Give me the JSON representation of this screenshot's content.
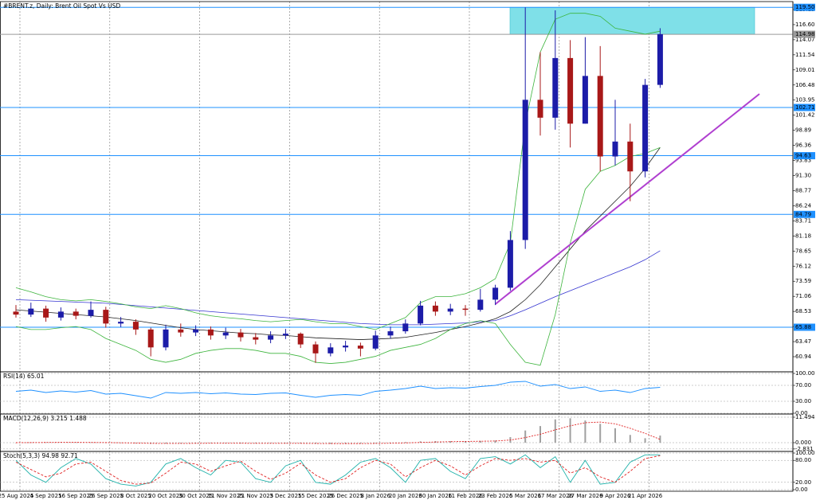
{
  "chart_data": [
    {
      "type": "candlestick",
      "title": "#BRENT.z, Daily:  Brent Oil Spot Vs USD",
      "categories": [
        "25 Aug 2025",
        null,
        "4 Sep 2025",
        null,
        "16 Sep 2025",
        null,
        "26 Sep 2025",
        null,
        "8 Oct 2025",
        null,
        "20 Oct 2025",
        null,
        "30 Oct 2025",
        null,
        "11 Nov 2025",
        null,
        "21 Nov 2025",
        null,
        "3 Dec 2025",
        null,
        "15 Dec 2025",
        null,
        "26 Dec 2025",
        null,
        "8 Jan 2026",
        null,
        "20 Jan 2026",
        null,
        "30 Jan 2026",
        null,
        "11 Feb 2026",
        null,
        "23 Feb 2026",
        null,
        "5 Mar 2026",
        null,
        "17 Mar 2026",
        null,
        "27 Mar 2026",
        null,
        "9 Apr 2026",
        null,
        "21 Apr 2026",
        null
      ],
      "open": [
        68.5,
        68.0,
        69.0,
        67.5,
        68.5,
        67.8,
        68.8,
        66.5,
        66.8,
        65.5,
        62.5,
        65.5,
        65.0,
        65.5,
        64.5,
        65.0,
        64.2,
        63.8,
        64.5,
        64.8,
        63.0,
        61.5,
        62.5,
        62.8,
        62.3,
        64.5,
        65.2,
        66.5,
        69.5,
        68.5,
        69.0,
        68.8,
        70.5,
        72.5,
        80.5,
        104.0,
        101.0,
        111.0,
        100.0,
        108.0,
        94.5,
        97.0,
        92.0,
        106.5
      ],
      "high": [
        69.6,
        70.0,
        69.5,
        69.2,
        69.0,
        70.2,
        69.3,
        67.6,
        67.2,
        65.8,
        66.3,
        66.5,
        66.2,
        66.0,
        65.8,
        65.6,
        64.9,
        65.2,
        65.6,
        65.0,
        63.5,
        63.2,
        63.6,
        63.3,
        65.3,
        66.0,
        67.2,
        70.3,
        70.2,
        69.8,
        69.6,
        72.3,
        73.0,
        82.0,
        119.5,
        112.0,
        119.0,
        114.0,
        114.5,
        113.0,
        104.0,
        100.0,
        107.5,
        116.0
      ],
      "low": [
        67.5,
        67.6,
        66.8,
        67.0,
        67.2,
        67.5,
        65.8,
        65.9,
        64.6,
        61.0,
        62.0,
        64.3,
        64.4,
        63.8,
        63.9,
        63.5,
        63.0,
        63.2,
        63.9,
        62.4,
        59.9,
        61.0,
        61.8,
        61.0,
        62.0,
        64.0,
        64.8,
        66.2,
        67.8,
        67.9,
        67.8,
        68.5,
        69.6,
        72.0,
        79.0,
        98.0,
        99.0,
        96.0,
        100.0,
        92.0,
        93.0,
        87.0,
        91.0,
        106.0
      ],
      "close": [
        68.0,
        69.0,
        67.5,
        68.5,
        67.8,
        68.8,
        66.5,
        66.8,
        65.5,
        62.5,
        65.5,
        65.0,
        65.5,
        64.5,
        65.0,
        64.2,
        63.8,
        64.5,
        64.8,
        63.0,
        61.5,
        62.5,
        62.8,
        62.3,
        64.5,
        65.2,
        66.5,
        69.5,
        68.5,
        69.0,
        68.8,
        70.5,
        72.5,
        80.5,
        104.0,
        101.0,
        111.0,
        100.0,
        108.0,
        94.5,
        97.0,
        92.0,
        106.5,
        115.0
      ],
      "up_color": "#1c1ca8",
      "down_color": "#a81818",
      "overlays": [
        {
          "color": "#3434d0",
          "values": [
            70.5,
            70.4,
            70.3,
            70.2,
            70.1,
            70.0,
            69.9,
            69.7,
            69.5,
            69.3,
            69.1,
            68.9,
            68.7,
            68.5,
            68.3,
            68.1,
            67.9,
            67.7,
            67.5,
            67.3,
            67.1,
            66.9,
            66.7,
            66.5,
            66.4,
            66.3,
            66.3,
            66.3,
            66.4,
            66.5,
            66.6,
            66.8,
            67.0,
            67.8,
            68.8,
            69.9,
            71.0,
            72.0,
            73.0,
            74.0,
            75.0,
            76.0,
            77.2,
            78.7
          ]
        },
        {
          "color": "#202020",
          "values": [
            68.8,
            68.6,
            68.4,
            68.2,
            68.0,
            67.8,
            67.6,
            67.3,
            67.0,
            66.6,
            66.2,
            65.8,
            65.5,
            65.3,
            65.1,
            64.9,
            64.8,
            64.6,
            64.5,
            64.3,
            64.1,
            64.0,
            63.9,
            63.8,
            63.9,
            64.0,
            64.2,
            64.6,
            65.0,
            65.5,
            66.0,
            66.6,
            67.3,
            68.5,
            70.5,
            73.0,
            76.0,
            79.0,
            82.0,
            84.5,
            87.0,
            89.5,
            92.5,
            96.0
          ]
        },
        {
          "color": "#3cb43c",
          "values": [
            72.5,
            71.8,
            71.0,
            70.5,
            70.3,
            70.5,
            70.2,
            69.8,
            69.3,
            69.0,
            69.5,
            69.0,
            68.3,
            67.8,
            67.5,
            67.3,
            67.0,
            66.8,
            67.0,
            67.2,
            66.8,
            66.5,
            66.5,
            66.0,
            65.5,
            66.5,
            67.5,
            70.0,
            71.0,
            71.0,
            71.5,
            72.5,
            74.0,
            80.0,
            100.0,
            112.0,
            117.5,
            118.5,
            118.5,
            118.0,
            116.0,
            115.5,
            115.0,
            115.5
          ]
        },
        {
          "color": "#3cb43c",
          "values": [
            66.0,
            65.5,
            65.5,
            65.8,
            66.0,
            65.5,
            64.0,
            63.0,
            62.0,
            60.5,
            60.0,
            60.5,
            61.5,
            62.0,
            62.3,
            62.3,
            62.0,
            61.5,
            61.5,
            61.0,
            60.0,
            59.8,
            60.0,
            60.5,
            61.0,
            62.0,
            62.5,
            63.0,
            64.0,
            65.5,
            66.5,
            67.0,
            66.5,
            63.0,
            60.0,
            59.5,
            68.0,
            80.0,
            89.0,
            92.0,
            93.0,
            94.5,
            95.0,
            96.0
          ]
        }
      ],
      "levels": [
        {
          "value": 119.5,
          "label": "119.50",
          "color": "#1e90ff"
        },
        {
          "value": 114.98,
          "label": "114.98",
          "color": "#9a9a9a"
        },
        {
          "value": 102.71,
          "label": "102.71",
          "color": "#1e90ff"
        },
        {
          "value": 94.63,
          "label": "94.63",
          "color": "#1e90ff"
        },
        {
          "value": 84.79,
          "label": "84.79",
          "color": "#1e90ff"
        },
        {
          "value": 65.88,
          "label": "65.88",
          "color": "#1e90ff"
        }
      ],
      "zone": {
        "from": 119.5,
        "to": 114.98,
        "color": "#7fe0e8"
      },
      "trendline": {
        "from": 69.75,
        "to": 104.98,
        "color": "#b040d0"
      },
      "ylim": [
        58.54,
        120.06
      ],
      "yticks": [
        119.13,
        {
          "value": 116.6,
          "label": "116.60"
        },
        114.07,
        111.54,
        109.01,
        106.48,
        103.95,
        101.42,
        98.89,
        96.36,
        93.83,
        {
          "value": 91.3,
          "label": "91.30"
        },
        88.77,
        86.24,
        83.71,
        81.18,
        78.65,
        76.12,
        73.59,
        71.06,
        68.53,
        {
          "value": 66,
          "label": "66.00"
        },
        63.47,
        60.94
      ]
    },
    {
      "type": "line",
      "title": "RSI(14) 65.01",
      "color": "#1e90ff",
      "values": [
        55,
        58,
        52,
        56,
        53,
        57,
        48,
        50,
        44,
        38,
        52,
        50,
        52,
        49,
        51,
        48,
        47,
        50,
        51,
        45,
        40,
        45,
        47,
        45,
        55,
        58,
        62,
        68,
        62,
        64,
        63,
        67,
        70,
        78,
        80,
        68,
        72,
        62,
        66,
        55,
        58,
        52,
        62,
        65.01
      ],
      "ylim": [
        0,
        100
      ],
      "yticks": [
        {
          "value": 100,
          "label": "100.00"
        },
        {
          "value": 70,
          "label": "70.00"
        },
        {
          "value": 30,
          "label": "30.00"
        },
        {
          "value": 0,
          "label": "0.00"
        }
      ]
    },
    {
      "type": "macd",
      "title": "MACD(12,26,9) 3.215 1.488",
      "color": "#a0a0a0",
      "signal_color": "#e02020",
      "values": [
        0,
        0.1,
        0.1,
        0.2,
        0.1,
        0.1,
        -0.1,
        -0.2,
        -0.3,
        -0.5,
        -0.4,
        -0.3,
        -0.2,
        -0.2,
        -0.2,
        -0.3,
        -0.3,
        -0.3,
        -0.2,
        -0.3,
        -0.5,
        -0.5,
        -0.4,
        -0.4,
        -0.2,
        0,
        0.3,
        0.6,
        0.7,
        0.7,
        0.7,
        0.8,
        1.0,
        2.5,
        5.5,
        7.5,
        10.5,
        11.0,
        10.0,
        8.5,
        6.5,
        3.5,
        2.0,
        3.215
      ],
      "signal": [
        0,
        0.05,
        0.1,
        0.15,
        0.15,
        0.1,
        0.05,
        -0.05,
        -0.15,
        -0.3,
        -0.35,
        -0.35,
        -0.3,
        -0.25,
        -0.25,
        -0.25,
        -0.3,
        -0.3,
        -0.3,
        -0.3,
        -0.35,
        -0.4,
        -0.4,
        -0.4,
        -0.35,
        -0.25,
        -0.1,
        0.1,
        0.3,
        0.45,
        0.55,
        0.65,
        0.75,
        1.2,
        2.3,
        3.8,
        5.8,
        7.6,
        9.0,
        9.3,
        8.5,
        6.5,
        4.2,
        1.488
      ],
      "ylim": [
        -3.59,
        12.57
      ],
      "yticks": [
        11.494,
        {
          "value": 0,
          "label": "0.000"
        },
        -2.831
      ]
    },
    {
      "type": "stochastic",
      "title": "Stoch(5,3,3) 94.98 92.71",
      "color": "#20b2aa",
      "signal_color": "#e02020",
      "values": [
        80,
        40,
        20,
        60,
        85,
        70,
        30,
        15,
        10,
        20,
        70,
        85,
        60,
        40,
        80,
        75,
        30,
        20,
        65,
        80,
        20,
        15,
        40,
        75,
        85,
        60,
        20,
        80,
        85,
        50,
        30,
        85,
        90,
        70,
        95,
        60,
        90,
        20,
        80,
        15,
        20,
        75,
        95,
        94.98
      ],
      "signal": [
        75,
        55,
        35,
        45,
        70,
        75,
        50,
        25,
        15,
        18,
        45,
        75,
        70,
        50,
        65,
        78,
        50,
        28,
        45,
        72,
        40,
        20,
        30,
        60,
        80,
        70,
        35,
        60,
        80,
        65,
        40,
        65,
        85,
        80,
        85,
        75,
        80,
        45,
        60,
        35,
        20,
        50,
        85,
        92.71
      ],
      "ylim": [
        0,
        100
      ],
      "yticks": [
        {
          "value": 100,
          "label": "100.00"
        },
        {
          "value": 80,
          "label": "80.00"
        },
        {
          "value": 20,
          "label": "20.00"
        },
        {
          "value": 0,
          "label": "0.00"
        }
      ]
    }
  ]
}
